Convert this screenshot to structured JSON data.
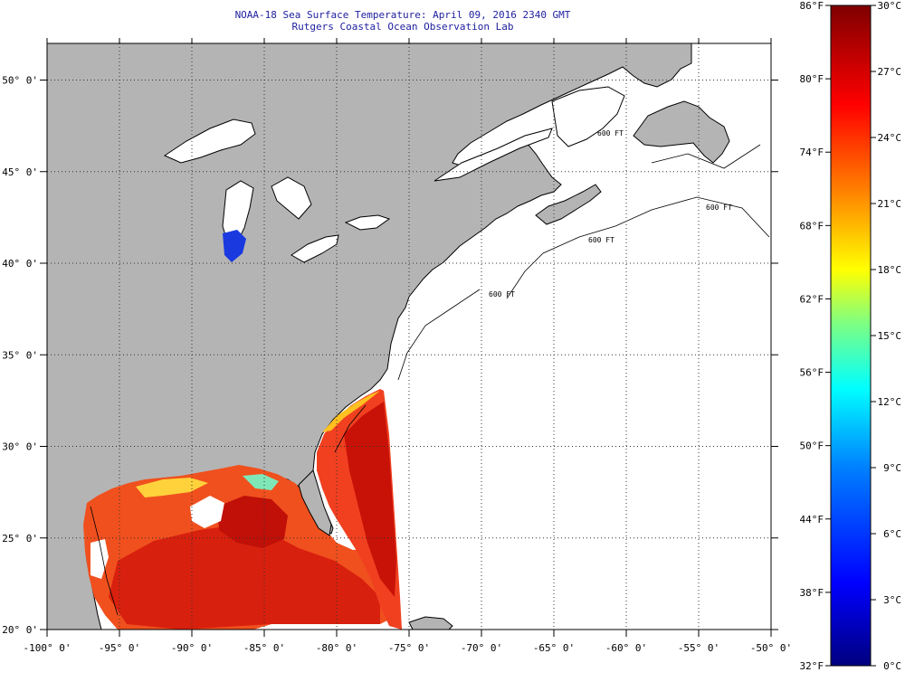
{
  "header": {
    "title": "NOAA-18 Sea Surface Temperature:  April 09, 2016 2340 GMT",
    "subtitle": "Rutgers Coastal Ocean Observation Lab"
  },
  "map": {
    "lon_range": [
      -100,
      -50
    ],
    "lat_range": [
      20,
      52
    ],
    "lon_ticks": [
      "-100° 0'",
      "-95° 0'",
      "-90° 0'",
      "-85° 0'",
      "-80° 0'",
      "-75° 0'",
      "-70° 0'",
      "-65° 0'",
      "-60° 0'",
      "-55° 0'",
      "-50° 0'"
    ],
    "lat_ticks": [
      "20° 0'",
      "25° 0'",
      "30° 0'",
      "35° 0'",
      "40° 0'",
      "45° 0'",
      "50° 0'"
    ],
    "land_color": "#b4b4b4",
    "water_color": "#ffffff",
    "isobath_labels": [
      "600 FT",
      "600 FT",
      "600 FT",
      "600 FT"
    ]
  },
  "colorbar": {
    "f_labels": [
      "86°F",
      "80°F",
      "74°F",
      "68°F",
      "62°F",
      "56°F",
      "50°F",
      "44°F",
      "38°F",
      "32°F"
    ],
    "c_labels": [
      "30°C",
      "27°C",
      "24°C",
      "21°C",
      "18°C",
      "15°C",
      "12°C",
      "9°C",
      "6°C",
      "3°C",
      "0°C"
    ],
    "colors": [
      "#00007f",
      "#0000ff",
      "#0080ff",
      "#00ffff",
      "#80ff80",
      "#ffff00",
      "#ff8000",
      "#ff0000",
      "#7f0000"
    ]
  }
}
